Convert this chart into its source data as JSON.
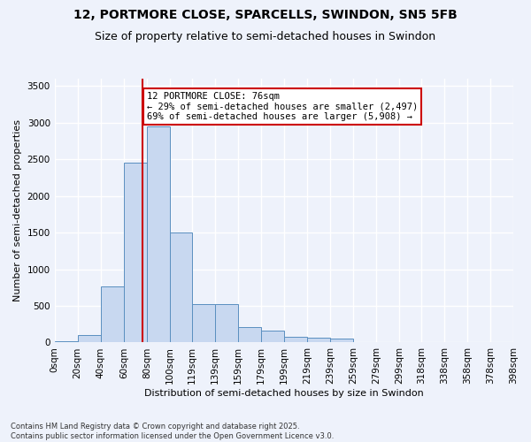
{
  "title_line1": "12, PORTMORE CLOSE, SPARCELLS, SWINDON, SN5 5FB",
  "title_line2": "Size of property relative to semi-detached houses in Swindon",
  "xlabel": "Distribution of semi-detached houses by size in Swindon",
  "ylabel": "Number of semi-detached properties",
  "footnote": "Contains HM Land Registry data © Crown copyright and database right 2025.\nContains public sector information licensed under the Open Government Licence v3.0.",
  "bin_labels": [
    "0sqm",
    "20sqm",
    "40sqm",
    "60sqm",
    "80sqm",
    "100sqm",
    "119sqm",
    "139sqm",
    "159sqm",
    "179sqm",
    "199sqm",
    "219sqm",
    "239sqm",
    "259sqm",
    "279sqm",
    "299sqm",
    "318sqm",
    "338sqm",
    "358sqm",
    "378sqm",
    "398sqm"
  ],
  "bin_left_edges": [
    0,
    20,
    40,
    60,
    80,
    100,
    119,
    139,
    159,
    179,
    199,
    219,
    239,
    259,
    279,
    299,
    318,
    338,
    358,
    378
  ],
  "bar_heights": [
    20,
    100,
    760,
    2450,
    2950,
    1500,
    530,
    530,
    205,
    165,
    80,
    70,
    50,
    10,
    5,
    0,
    0,
    0,
    0,
    0
  ],
  "bar_color": "#c8d8f0",
  "bar_edge_color": "#5a8fc0",
  "property_size": 76,
  "property_label": "12 PORTMORE CLOSE: 76sqm",
  "pct_smaller": 29,
  "pct_larger": 69,
  "count_smaller": 2497,
  "count_larger": 5908,
  "vline_color": "#cc0000",
  "annotation_box_color": "#cc0000",
  "annotation_font_size": 7.5,
  "title_font_size": 10,
  "subtitle_font_size": 9,
  "axis_label_font_size": 8,
  "tick_font_size": 7.5,
  "ylim": [
    0,
    3600
  ],
  "yticks": [
    0,
    500,
    1000,
    1500,
    2000,
    2500,
    3000,
    3500
  ],
  "background_color": "#eef2fb",
  "grid_color": "#ffffff"
}
